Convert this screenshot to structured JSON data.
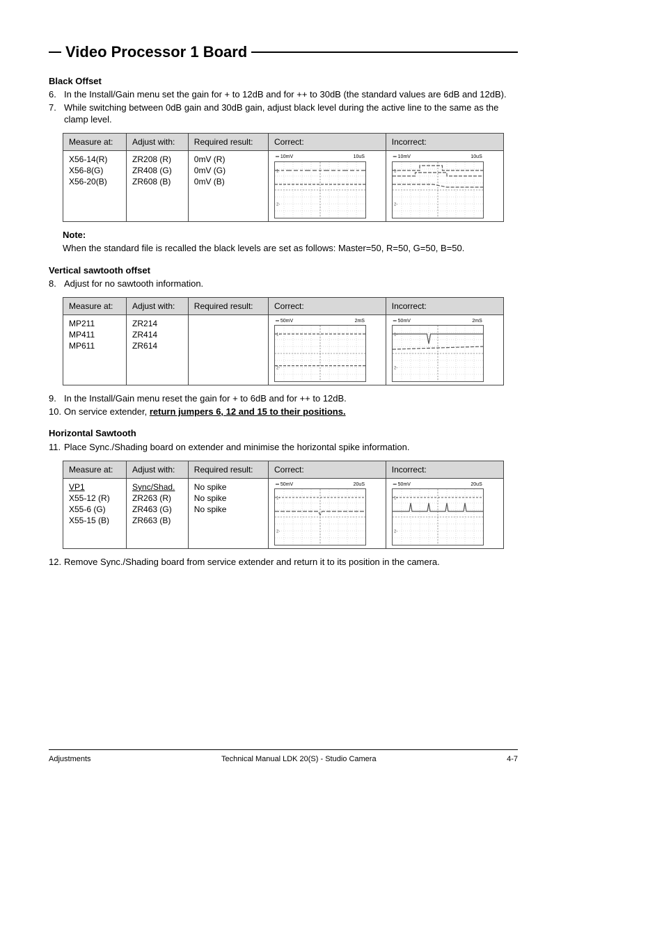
{
  "section_title": "Video Processor 1 Board",
  "colors": {
    "table_header_bg": "#d8d8d8",
    "border": "#444444",
    "grid_line": "#bbbbbb",
    "grid_center": "#888888",
    "trace": "#555555"
  },
  "black_offset": {
    "heading": "Black Offset",
    "steps": [
      {
        "n": "6.",
        "text": "In the Install/Gain menu set the gain for + to 12dB and for ++ to 30dB (the standard values are 6dB and 12dB)."
      },
      {
        "n": "7.",
        "text": "While switching between 0dB gain and 30dB gain, adjust black level during the active line to the same as the clamp level."
      }
    ],
    "table": {
      "headers": [
        "Measure at:",
        "Adjust with:",
        "Required result:",
        "Correct:",
        "Incorrect:"
      ],
      "rows": [
        [
          "X56-14(R)",
          "ZR208 (R)",
          "0mV (R)"
        ],
        [
          "X56-8(G)",
          "ZR408 (G)",
          "0mV (G)"
        ],
        [
          "X56-20(B)",
          "ZR608 (B)",
          "0mV (B)"
        ]
      ],
      "scope_label_left": "10mV",
      "scope_label_right": "10uS"
    },
    "note_label": "Note:",
    "note_text": "When the standard file is recalled the black levels are set as follows: Master=50, R=50, G=50, B=50."
  },
  "vertical_sawtooth": {
    "heading": "Vertical sawtooth offset",
    "steps_before": [
      {
        "n": "8.",
        "text": "Adjust for no sawtooth information."
      }
    ],
    "table": {
      "headers": [
        "Measure at:",
        "Adjust with:",
        "Required result:",
        "Correct:",
        "Incorrect:"
      ],
      "rows": [
        [
          "MP211",
          "ZR214",
          ""
        ],
        [
          "MP411",
          "ZR414",
          ""
        ],
        [
          "MP611",
          "ZR614",
          ""
        ]
      ],
      "scope_label_left": "50mV",
      "scope_label_right": "2mS"
    },
    "steps_after": [
      {
        "n": "9.",
        "text": "In the Install/Gain menu reset the gain for + to 6dB and for ++ to 12dB."
      },
      {
        "n": "10.",
        "prefix": "On service extender, ",
        "underlined": "return jumpers 6, 12 and 15 to their positions."
      }
    ]
  },
  "horizontal_sawtooth": {
    "heading": "Horizontal Sawtooth",
    "steps_before": [
      {
        "n": "11.",
        "text": "Place Sync./Shading board on extender and minimise the horizontal spike information."
      }
    ],
    "table": {
      "headers": [
        "Measure at:",
        "Adjust with:",
        "Required result:",
        "Correct:",
        "Incorrect:"
      ],
      "rows": [
        [
          "VP1",
          "Sync/Shad.",
          ""
        ],
        [
          "X55-12 (R)",
          "ZR263 (R)",
          "No spike"
        ],
        [
          "X55-6 (G)",
          "ZR463 (G)",
          "No spike"
        ],
        [
          "X55-15 (B)",
          "ZR663 (B)",
          "No spike"
        ]
      ],
      "row0_underline": true,
      "scope_label_left": "50mV",
      "scope_label_right": "20uS"
    },
    "steps_after": [
      {
        "n": "12.",
        "text": "Remove Sync./Shading board from service extender and return it to its position in the camera."
      }
    ]
  },
  "footer": {
    "left": "Adjustments",
    "center": "Technical Manual LDK 20(S) - Studio Camera",
    "right": "4-7"
  },
  "scope": {
    "width": 130,
    "height": 80,
    "cols": 10,
    "rows": 8
  }
}
